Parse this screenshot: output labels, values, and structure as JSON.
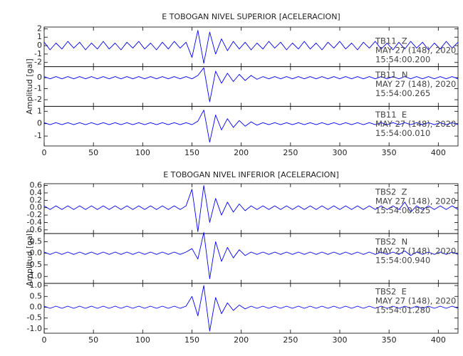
{
  "chart_data": [
    {
      "type": "line",
      "title": "E TOBOGAN NIVEL SUPERIOR [ACELERACION]",
      "ylabel": "Amplitud [gal]",
      "xlim": [
        0,
        420
      ],
      "xticks": [
        0,
        50,
        100,
        150,
        200,
        250,
        300,
        350,
        400
      ],
      "x": [
        0,
        6,
        12,
        18,
        24,
        30,
        36,
        42,
        48,
        54,
        60,
        66,
        72,
        78,
        84,
        90,
        96,
        102,
        108,
        114,
        120,
        126,
        132,
        138,
        144,
        150,
        156,
        162,
        168,
        174,
        180,
        186,
        192,
        198,
        204,
        210,
        216,
        222,
        228,
        234,
        240,
        246,
        252,
        258,
        264,
        270,
        276,
        282,
        288,
        294,
        300,
        306,
        312,
        318,
        324,
        330,
        336,
        342,
        348,
        354,
        360,
        366,
        372,
        378,
        384,
        390,
        396,
        402,
        408,
        414,
        420
      ],
      "series": [
        {
          "name": "TB11  Z",
          "date": "MAY 27 (148), 2020",
          "time": "15:54:00.200",
          "color": "#0000ff",
          "ylim": [
            -2.5,
            2.2
          ],
          "yticks": [
            -2,
            -1,
            0,
            1,
            2
          ],
          "values": [
            0.4,
            -0.5,
            0.3,
            -0.4,
            0.5,
            -0.3,
            0.4,
            -0.5,
            0.3,
            -0.4,
            0.5,
            -0.4,
            0.3,
            -0.5,
            0.4,
            -0.3,
            0.5,
            -0.4,
            0.3,
            -0.5,
            0.4,
            -0.4,
            0.5,
            -0.3,
            0.4,
            -1.4,
            1.8,
            -2.1,
            1.6,
            -1.0,
            0.8,
            -0.6,
            0.5,
            -0.4,
            0.4,
            -0.5,
            0.3,
            -0.4,
            0.5,
            -0.3,
            0.4,
            -0.5,
            0.3,
            -0.4,
            0.5,
            -0.4,
            0.3,
            -0.5,
            0.4,
            -0.3,
            0.5,
            -0.4,
            0.3,
            -0.5,
            0.4,
            -0.3,
            0.5,
            -0.4,
            0.3,
            -0.5,
            0.4,
            -0.4,
            0.5,
            -0.3,
            0.4,
            -0.5,
            0.3,
            -0.4,
            0.5,
            -0.3,
            0.4
          ]
        },
        {
          "name": "TB11  N",
          "date": "MAY 27 (148), 2020",
          "time": "15:54:00.265",
          "color": "#0000ff",
          "ylim": [
            -2.6,
            1.0
          ],
          "yticks": [
            -2,
            -1,
            0
          ],
          "values": [
            0.1,
            -0.1,
            0.1,
            -0.1,
            0.1,
            -0.1,
            0.1,
            -0.1,
            0.1,
            -0.1,
            0.1,
            -0.1,
            0.1,
            -0.1,
            0.1,
            -0.1,
            0.1,
            -0.1,
            0.1,
            -0.1,
            0.1,
            -0.1,
            0.1,
            -0.1,
            0.1,
            -0.1,
            0.2,
            0.9,
            -2.2,
            0.6,
            -0.5,
            0.4,
            -0.35,
            0.3,
            -0.25,
            0.2,
            -0.15,
            0.1,
            -0.1,
            0.1,
            -0.1,
            0.1,
            -0.1,
            0.1,
            -0.1,
            0.1,
            -0.1,
            0.1,
            -0.1,
            0.1,
            -0.1,
            0.1,
            -0.1,
            0.1,
            -0.1,
            0.1,
            -0.1,
            0.1,
            -0.1,
            0.1,
            -0.1,
            0.1,
            -0.1,
            0.1,
            -0.1,
            0.1,
            -0.1,
            0.1,
            -0.1,
            0.1,
            -0.1
          ]
        },
        {
          "name": "TB11  E",
          "date": "MAY 27 (148), 2020",
          "time": "15:54:00.010",
          "color": "#0000ff",
          "ylim": [
            -1.8,
            1.4
          ],
          "yticks": [
            -1,
            0,
            1
          ],
          "values": [
            0.08,
            -0.08,
            0.08,
            -0.08,
            0.08,
            -0.08,
            0.08,
            -0.08,
            0.08,
            -0.08,
            0.08,
            -0.08,
            0.08,
            -0.08,
            0.08,
            -0.08,
            0.08,
            -0.08,
            0.08,
            -0.08,
            0.08,
            -0.08,
            0.08,
            -0.08,
            0.08,
            -0.08,
            0.2,
            1.1,
            -1.5,
            0.7,
            -0.5,
            0.4,
            -0.3,
            0.25,
            -0.2,
            0.15,
            -0.12,
            0.08,
            -0.08,
            0.08,
            -0.08,
            0.08,
            -0.08,
            0.08,
            -0.08,
            0.08,
            -0.08,
            0.08,
            -0.08,
            0.08,
            -0.08,
            0.08,
            -0.08,
            0.08,
            -0.08,
            0.08,
            -0.08,
            0.08,
            -0.08,
            0.08,
            -0.08,
            0.08,
            -0.08,
            0.08,
            -0.08,
            0.08,
            -0.08,
            0.08,
            -0.08,
            0.08,
            -0.08
          ]
        }
      ]
    },
    {
      "type": "line",
      "title": "E TOBOGAN NIVEL INFERIOR [ACELERACION]",
      "ylabel": "Amplitud [gal]",
      "xlim": [
        0,
        420
      ],
      "xticks": [
        0,
        50,
        100,
        150,
        200,
        250,
        300,
        350,
        400
      ],
      "x": [
        0,
        6,
        12,
        18,
        24,
        30,
        36,
        42,
        48,
        54,
        60,
        66,
        72,
        78,
        84,
        90,
        96,
        102,
        108,
        114,
        120,
        126,
        132,
        138,
        144,
        150,
        156,
        162,
        168,
        174,
        180,
        186,
        192,
        198,
        204,
        210,
        216,
        222,
        228,
        234,
        240,
        246,
        252,
        258,
        264,
        270,
        276,
        282,
        288,
        294,
        300,
        306,
        312,
        318,
        324,
        330,
        336,
        342,
        348,
        354,
        360,
        366,
        372,
        378,
        384,
        390,
        396,
        402,
        408,
        414,
        420
      ],
      "series": [
        {
          "name": "TBS2  Z",
          "date": "MAY 27 (148), 2020",
          "time": "15:54:00.825",
          "color": "#0000ff",
          "ylim": [
            -0.7,
            0.65
          ],
          "yticks": [
            -0.6,
            -0.4,
            -0.2,
            {
              "value": 0,
              "label": "0.0"
            },
            0.2,
            0.4,
            0.6
          ],
          "values": [
            0.05,
            -0.05,
            0.05,
            -0.05,
            0.05,
            -0.05,
            0.05,
            -0.05,
            0.05,
            -0.05,
            0.05,
            -0.05,
            0.05,
            -0.05,
            0.05,
            -0.05,
            0.05,
            -0.05,
            0.05,
            -0.05,
            0.05,
            -0.05,
            0.05,
            -0.05,
            0.05,
            0.5,
            -0.65,
            0.6,
            -0.4,
            0.25,
            -0.2,
            0.15,
            -0.12,
            0.1,
            -0.08,
            0.05,
            -0.05,
            0.05,
            -0.05,
            0.05,
            -0.05,
            0.05,
            -0.05,
            0.05,
            -0.05,
            0.05,
            -0.05,
            0.05,
            -0.05,
            0.05,
            -0.05,
            0.05,
            -0.05,
            0.05,
            -0.05,
            0.05,
            -0.05,
            0.05,
            -0.05,
            0.05,
            -0.05,
            0.15,
            -0.12,
            0.05,
            -0.05,
            0.05,
            -0.05,
            0.05,
            -0.05,
            0.05,
            -0.05
          ]
        },
        {
          "name": "TBS2  N",
          "date": "MAY 27 (148), 2020",
          "time": "15:54:00.940",
          "color": "#0000ff",
          "ylim": [
            -1.3,
            0.85
          ],
          "yticks": [
            {
              "value": -1,
              "label": "-1.0"
            },
            -0.5,
            {
              "value": 0,
              "label": "0.0"
            },
            0.5
          ],
          "values": [
            0.05,
            -0.05,
            0.05,
            -0.05,
            0.05,
            -0.05,
            0.05,
            -0.05,
            0.05,
            -0.05,
            0.05,
            -0.05,
            0.05,
            -0.05,
            0.05,
            -0.05,
            0.05,
            -0.05,
            0.05,
            -0.05,
            0.05,
            -0.05,
            0.05,
            -0.05,
            0.05,
            0.2,
            -0.25,
            0.9,
            -1.1,
            0.5,
            -0.35,
            0.25,
            -0.2,
            0.15,
            -0.1,
            0.05,
            -0.05,
            0.05,
            -0.05,
            0.05,
            -0.05,
            0.05,
            -0.05,
            0.05,
            -0.05,
            0.05,
            -0.05,
            0.05,
            -0.05,
            0.05,
            -0.05,
            0.05,
            -0.05,
            0.05,
            -0.05,
            0.05,
            -0.05,
            0.05,
            -0.05,
            0.05,
            -0.05,
            0.1,
            -0.1,
            0.05,
            -0.05,
            0.05,
            -0.05,
            0.05,
            -0.05,
            0.05,
            -0.05
          ]
        },
        {
          "name": "TBS2  E",
          "date": "MAY 27 (148), 2020",
          "time": "15:54:01.280",
          "color": "#0000ff",
          "ylim": [
            -1.2,
            1.1
          ],
          "yticks": [
            {
              "value": -1,
              "label": "-1.0"
            },
            -0.5,
            {
              "value": 0,
              "label": "0.0"
            },
            0.5,
            {
              "value": 1,
              "label": "1.0"
            }
          ],
          "values": [
            0.05,
            -0.05,
            0.05,
            -0.05,
            0.05,
            -0.05,
            0.05,
            -0.05,
            0.05,
            -0.05,
            0.05,
            -0.05,
            0.05,
            -0.05,
            0.05,
            -0.05,
            0.05,
            -0.05,
            0.05,
            -0.05,
            0.05,
            -0.05,
            0.05,
            -0.05,
            0.05,
            0.5,
            -0.4,
            1.0,
            -1.1,
            0.45,
            -0.3,
            0.2,
            -0.15,
            0.1,
            -0.08,
            0.05,
            -0.05,
            0.05,
            -0.05,
            0.05,
            -0.05,
            0.05,
            -0.05,
            0.05,
            -0.05,
            0.05,
            -0.05,
            0.05,
            -0.05,
            0.05,
            -0.05,
            0.05,
            -0.05,
            0.05,
            -0.05,
            0.05,
            -0.05,
            0.05,
            -0.05,
            0.05,
            -0.05,
            0.05,
            -0.05,
            0.05,
            -0.05,
            0.05,
            -0.05,
            0.05,
            -0.05,
            0.05,
            -0.05
          ]
        }
      ]
    }
  ]
}
